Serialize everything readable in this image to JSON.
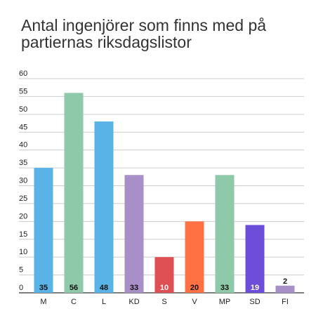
{
  "chart_data": {
    "type": "bar",
    "title": "Antal ingenjörer som finns med på partiernas riksdagslistor",
    "xlabel": "",
    "ylabel": "",
    "ylim": [
      0,
      60
    ],
    "yticks": [
      0,
      5,
      10,
      15,
      20,
      25,
      30,
      35,
      40,
      45,
      50,
      55,
      60
    ],
    "grid": true,
    "legend": "none",
    "categories": [
      "M",
      "C",
      "L",
      "KD",
      "S",
      "V",
      "MP",
      "SD",
      "FI"
    ],
    "values": [
      35,
      56,
      48,
      33,
      10,
      20,
      33,
      19,
      2
    ],
    "value_labels": [
      "35",
      "56",
      "48",
      "33",
      "10",
      "20",
      "33",
      "19",
      "2"
    ],
    "colors": [
      "#5ab3e6",
      "#8ec9a9",
      "#5ab3e6",
      "#a98fc8",
      "#df5054",
      "#ff7043",
      "#8ec9a9",
      "#6d4ed9",
      "#a98fc8"
    ],
    "label_colors": [
      "#111111",
      "#111111",
      "#111111",
      "#111111",
      "#ffffff",
      "#111111",
      "#111111",
      "#ffffff",
      "#111111"
    ]
  }
}
